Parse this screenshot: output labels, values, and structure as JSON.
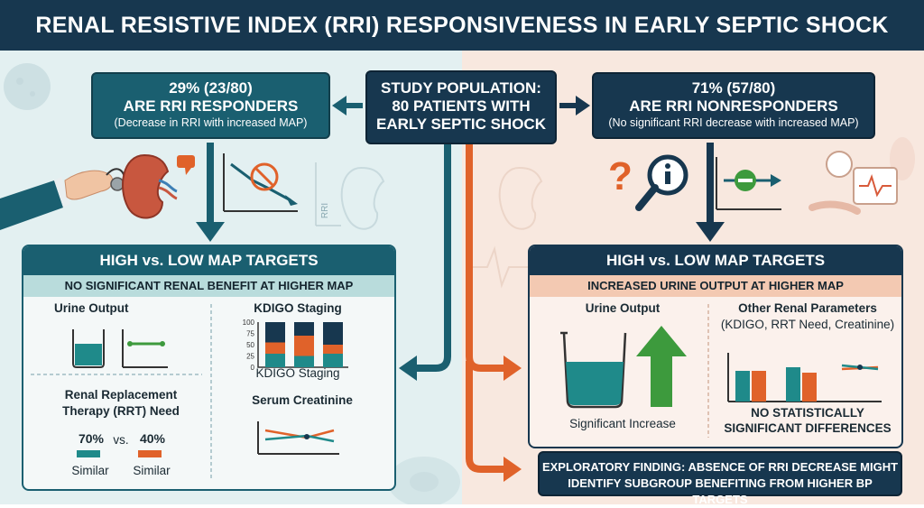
{
  "title": "RENAL RESISTIVE INDEX (RRI) RESPONSIVENESS IN EARLY SEPTIC SHOCK",
  "center": {
    "line1": "STUDY POPULATION:",
    "line2": "80 PATIENTS WITH",
    "line3": "EARLY SEPTIC SHOCK"
  },
  "responders": {
    "stat": "29% (23/80)",
    "label": "ARE RRI RESPONDERS",
    "note": "(Decrease in RRI with increased MAP)"
  },
  "nonresponders": {
    "stat": "71% (57/80)",
    "label": "ARE RRI NONRESPONDERS",
    "note": "(No significant RRI decrease with increased MAP)"
  },
  "rri_label": "RRI",
  "left_panel": {
    "header": "HIGH vs. LOW MAP TARGETS",
    "subheader": "NO SIGNIFICANT RENAL BENEFIT AT HIGHER MAP",
    "urine_output": "Urine Output",
    "kdigo_title": "KDIGO Staging",
    "kdigo_caption": "KDIGO Staging",
    "kdigo_ticks": [
      "100",
      "75",
      "50",
      "25",
      "0"
    ],
    "rrt_line1": "Renal Replacement",
    "rrt_line2": "Therapy (RRT) Need",
    "rrt_high": "70%",
    "rrt_vs": "vs.",
    "rrt_low": "40%",
    "similar_1": "Similar",
    "similar_2": "Similar",
    "creatinine": "Serum Creatinine"
  },
  "right_panel": {
    "header": "HIGH vs. LOW MAP TARGETS",
    "subheader": "INCREASED URINE OUTPUT AT HIGHER MAP",
    "urine_output": "Urine Output",
    "significant": "Significant Increase",
    "other_title": "Other Renal Parameters",
    "other_sub": "(KDIGO, RRT Need, Creatinine)",
    "no_sig_1": "NO STATISTICALLY",
    "no_sig_2": "SIGNIFICANT DIFFERENCES"
  },
  "exploratory": {
    "line1": "EXPLORATORY FINDING: ABSENCE OF RRI DECREASE MIGHT",
    "line2": "IDENTIFY SUBGROUP BENEFITING FROM HIGHER BP TARGETS"
  },
  "colors": {
    "teal": "#1a5f70",
    "navy": "#17374f",
    "orange": "#e0622a",
    "green": "#3d9a3d",
    "bar_teal": "#1f8a8a"
  }
}
